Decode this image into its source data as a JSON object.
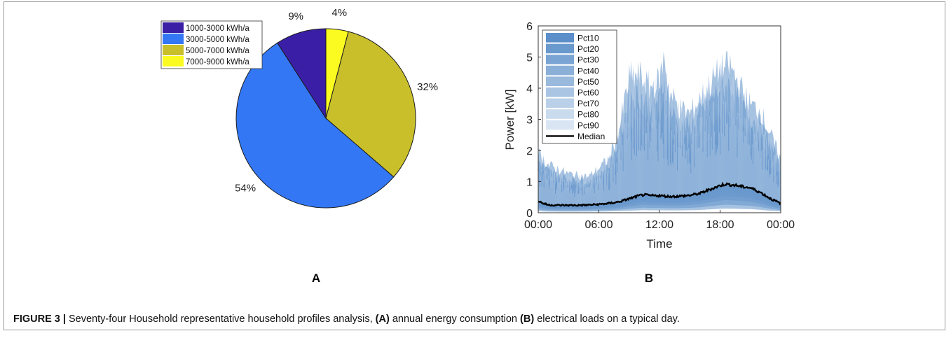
{
  "figure": {
    "caption": {
      "label": "FIGURE 3 |",
      "text1": " Seventy-four Household representative household profiles analysis, ",
      "refA": "(A)",
      "text2": " annual energy consumption ",
      "refB": "(B)",
      "text3": " electrical loads on a typical day."
    },
    "panel_a_label": "A",
    "panel_b_label": "B"
  },
  "chart_data": [
    {
      "type": "pie",
      "slices": [
        {
          "label": "1000-3000 kWh/a",
          "value": 9,
          "display": "9%",
          "color": "#3a1fa6"
        },
        {
          "label": "3000-5000 kWh/a",
          "value": 54,
          "display": "54%",
          "color": "#3377f5"
        },
        {
          "label": "5000-7000 kWh/a",
          "value": 32,
          "display": "32%",
          "color": "#c9bf2b"
        },
        {
          "label": "7000-9000 kWh/a",
          "value": 4,
          "display": "4%",
          "color": "#fbfb22"
        }
      ],
      "legend_position": "top-left"
    },
    {
      "type": "area",
      "xlabel": "Time",
      "ylabel": "Power [kW]",
      "ylim": [
        0,
        6
      ],
      "x_ticks": [
        "00:00",
        "06:00",
        "12:00",
        "18:00",
        "00:00"
      ],
      "y_ticks": [
        "0",
        "1",
        "2",
        "3",
        "4",
        "5",
        "6"
      ],
      "legend_position": "top-left",
      "legend": [
        "Pct10",
        "Pct20",
        "Pct30",
        "Pct40",
        "Pct50",
        "Pct60",
        "Pct70",
        "Pct80",
        "Pct90",
        "Median"
      ],
      "band_colors": [
        "#5c8fc9",
        "#6a99ce",
        "#7aa4d3",
        "#8aafd8",
        "#9abadd",
        "#aac5e3",
        "#bad0e8",
        "#cadbed",
        "#d9e5f2"
      ],
      "median_color": "#000000",
      "median": {
        "x_hours": [
          0,
          0.5,
          1,
          2,
          3,
          4,
          5,
          6,
          7,
          8,
          9,
          10,
          10.5,
          11,
          12,
          13,
          14,
          15,
          16,
          17,
          18,
          18.5,
          19,
          19.5,
          20,
          21,
          22,
          23,
          24
        ],
        "values": [
          0.38,
          0.3,
          0.25,
          0.24,
          0.24,
          0.24,
          0.25,
          0.27,
          0.3,
          0.35,
          0.45,
          0.55,
          0.58,
          0.55,
          0.55,
          0.52,
          0.53,
          0.56,
          0.62,
          0.75,
          0.87,
          0.92,
          0.9,
          0.88,
          0.85,
          0.8,
          0.65,
          0.45,
          0.3
        ]
      },
      "envelope_max": {
        "x_hours": [
          0,
          1,
          3,
          5,
          7,
          8,
          9,
          10,
          11,
          12,
          12.5,
          13,
          14,
          15,
          16,
          17,
          18,
          19,
          20,
          21,
          22,
          23,
          24
        ],
        "values": [
          2.0,
          1.6,
          1.3,
          1.2,
          1.8,
          2.8,
          4.5,
          4.6,
          4.2,
          4.4,
          5.3,
          4.0,
          3.5,
          3.3,
          3.8,
          4.3,
          4.8,
          4.9,
          4.2,
          3.6,
          3.4,
          2.6,
          1.8
        ]
      }
    }
  ]
}
